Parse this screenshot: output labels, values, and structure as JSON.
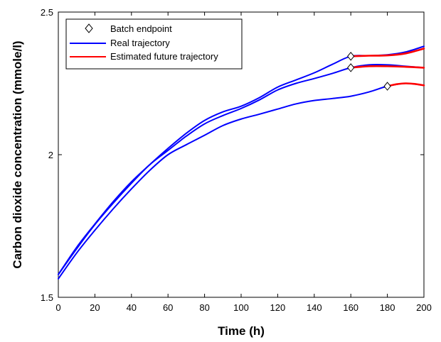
{
  "chart_data": {
    "type": "line",
    "title": "",
    "xlabel": "Time (h)",
    "ylabel": "Carbon dioxide concentration (mmole/l)",
    "xlim": [
      0,
      200
    ],
    "ylim": [
      1.5,
      2.5
    ],
    "xticks": [
      0,
      20,
      40,
      60,
      80,
      100,
      120,
      140,
      160,
      180,
      200
    ],
    "yticks": [
      1.5,
      2,
      2.5
    ],
    "ytick_labels": [
      "1.5",
      "2",
      "2.5"
    ],
    "grid": false,
    "legend_position": "top-left",
    "legend": [
      {
        "label": "Batch endpoint",
        "marker": "diamond",
        "color": "#000000"
      },
      {
        "label": "Real trajectory",
        "color": "#0000ff"
      },
      {
        "label": "Estimated future trajectory",
        "color": "#ff0000"
      }
    ],
    "series": [
      {
        "kind": "real",
        "color": "#0000ff",
        "x": [
          0,
          10,
          20,
          30,
          40,
          50,
          60,
          70,
          80,
          90,
          100,
          110,
          120,
          130,
          140,
          150,
          160,
          170,
          180,
          190,
          200
        ],
        "y": [
          1.565,
          1.655,
          1.735,
          1.81,
          1.88,
          1.945,
          2.0,
          2.035,
          2.068,
          2.102,
          2.125,
          2.142,
          2.16,
          2.178,
          2.19,
          2.197,
          2.205,
          2.22,
          2.24,
          2.25,
          2.243
        ]
      },
      {
        "kind": "real",
        "color": "#0000ff",
        "x": [
          0,
          10,
          20,
          30,
          40,
          50,
          60,
          70,
          80,
          90,
          100,
          110,
          120,
          130,
          140,
          150,
          160,
          170,
          180,
          190,
          200
        ],
        "y": [
          1.58,
          1.67,
          1.755,
          1.83,
          1.9,
          1.965,
          2.015,
          2.065,
          2.108,
          2.137,
          2.162,
          2.192,
          2.227,
          2.25,
          2.267,
          2.285,
          2.305,
          2.315,
          2.315,
          2.31,
          2.305
        ]
      },
      {
        "kind": "real",
        "color": "#0000ff",
        "x": [
          0,
          10,
          20,
          30,
          40,
          50,
          60,
          70,
          80,
          90,
          100,
          110,
          120,
          130,
          140,
          150,
          160,
          170,
          180,
          190,
          200
        ],
        "y": [
          1.58,
          1.675,
          1.757,
          1.835,
          1.905,
          1.965,
          2.022,
          2.075,
          2.12,
          2.15,
          2.17,
          2.2,
          2.237,
          2.262,
          2.287,
          2.317,
          2.345,
          2.347,
          2.35,
          2.36,
          2.38
        ]
      },
      {
        "kind": "estimated",
        "color": "#ff0000",
        "x": [
          180,
          185,
          190,
          195,
          200
        ],
        "y": [
          2.24,
          2.247,
          2.25,
          2.248,
          2.243
        ]
      },
      {
        "kind": "estimated",
        "color": "#ff0000",
        "x": [
          160,
          170,
          180,
          190,
          200
        ],
        "y": [
          2.305,
          2.31,
          2.31,
          2.308,
          2.305
        ]
      },
      {
        "kind": "estimated",
        "color": "#ff0000",
        "x": [
          160,
          170,
          180,
          190,
          200
        ],
        "y": [
          2.345,
          2.347,
          2.348,
          2.355,
          2.372
        ]
      }
    ],
    "endpoints": [
      {
        "x": 180,
        "y": 2.24
      },
      {
        "x": 160,
        "y": 2.305
      },
      {
        "x": 160,
        "y": 2.345
      }
    ]
  }
}
